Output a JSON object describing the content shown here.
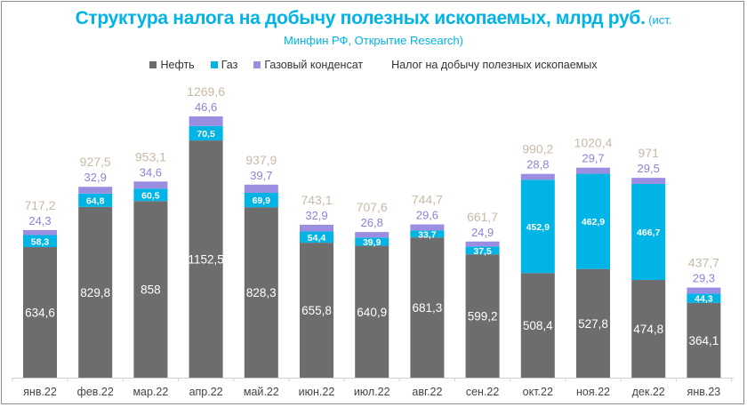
{
  "chart_data": {
    "type": "bar",
    "stacked": true,
    "title": "Структура налога на добычу полезных ископаемых, млрд руб.",
    "title_source": " (ист.",
    "subtitle": "Минфин РФ, Открытие Research)",
    "xlabel": "",
    "ylabel": "",
    "grid": false,
    "legend_position": "top",
    "categories": [
      "янв.22",
      "фев.22",
      "мар.22",
      "апр.22",
      "май.22",
      "июн.22",
      "июл.22",
      "авг.22",
      "сен.22",
      "окт.22",
      "ноя.22",
      "дек.22",
      "янв.23"
    ],
    "series": [
      {
        "name": "Нефть",
        "color": "#6d6d6d",
        "values": [
          634.6,
          829.8,
          858,
          1152.5,
          828.3,
          655.8,
          640.9,
          681.3,
          599.2,
          508.4,
          527.8,
          474.8,
          364.1
        ]
      },
      {
        "name": "Газ",
        "color": "#00b4e6",
        "values": [
          58.3,
          64.8,
          60.5,
          70.5,
          69.9,
          54.4,
          39.9,
          33.7,
          37.5,
          452.9,
          462.9,
          466.7,
          44.3
        ]
      },
      {
        "name": "Газовый конденсат",
        "color": "#9b8ee0",
        "values": [
          24.3,
          32.9,
          34.6,
          46.6,
          39.7,
          32.9,
          26.8,
          29.6,
          24.9,
          28.8,
          29.7,
          29.5,
          29.3
        ]
      }
    ],
    "totals": {
      "name": "Налог на добычу полезных ископаемых",
      "values": [
        717.2,
        927.5,
        953.1,
        1269.6,
        937.9,
        743.1,
        707.6,
        744.7,
        661.7,
        990.2,
        1020.4,
        971,
        437.7
      ],
      "labels": [
        "717,2",
        "927,5",
        "953,1",
        "1269,6",
        "937,9",
        "743,1",
        "707,6",
        "744,7",
        "661,7",
        "990,2",
        "1020,4",
        "971",
        "437,7"
      ]
    },
    "value_labels": {
      "oil": [
        "634,6",
        "829,8",
        "858",
        "1152,5",
        "828,3",
        "655,8",
        "640,9",
        "681,3",
        "599,2",
        "508,4",
        "527,8",
        "474,8",
        "364,1"
      ],
      "gas": [
        "58,3",
        "64,8",
        "60,5",
        "70,5",
        "69,9",
        "54,4",
        "39,9",
        "33,7",
        "37,5",
        "452,9",
        "462,9",
        "466,7",
        "44,3"
      ],
      "condensate": [
        "24,3",
        "32,9",
        "34,6",
        "46,6",
        "39,7",
        "32,9",
        "26,8",
        "29,6",
        "24,9",
        "28,8",
        "29,7",
        "29,5",
        "29,3"
      ]
    },
    "ylim": [
      0,
      1300
    ]
  },
  "legend": {
    "items": [
      {
        "label": "Нефть",
        "color": "#6d6d6d"
      },
      {
        "label": "Газ",
        "color": "#00b4e6"
      },
      {
        "label": "Газовый конденсат",
        "color": "#9b8ee0"
      },
      {
        "label": "Налог на добычу полезных ископаемых",
        "color": ""
      }
    ]
  }
}
